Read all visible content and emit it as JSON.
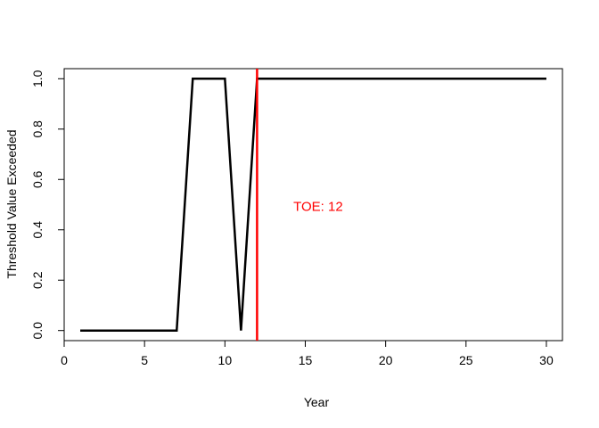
{
  "chart_data": {
    "type": "line",
    "xlabel": "Year",
    "ylabel": "Threshold Value Exceeded",
    "xlim": [
      0,
      31
    ],
    "ylim": [
      -0.04,
      1.04
    ],
    "x_ticks": [
      0,
      5,
      10,
      15,
      20,
      25,
      30
    ],
    "y_ticks": [
      0.0,
      0.2,
      0.4,
      0.6,
      0.8,
      1.0
    ],
    "x_tick_labels": [
      "0",
      "5",
      "10",
      "15",
      "20",
      "25",
      "30"
    ],
    "y_tick_labels": [
      "0.0",
      "0.2",
      "0.4",
      "0.6",
      "0.8",
      "1.0"
    ],
    "grid": false,
    "series": [
      {
        "x": [
          1,
          2,
          3,
          4,
          5,
          6,
          7,
          8,
          9,
          10,
          11,
          12,
          13,
          14,
          15,
          16,
          17,
          18,
          19,
          20,
          21,
          22,
          23,
          24,
          25,
          26,
          27,
          28,
          29,
          30
        ],
        "values": [
          0,
          0,
          0,
          0,
          0,
          0,
          0,
          1,
          1,
          1,
          0,
          1,
          1,
          1,
          1,
          1,
          1,
          1,
          1,
          1,
          1,
          1,
          1,
          1,
          1,
          1,
          1,
          1,
          1,
          1
        ],
        "color": "#000000"
      }
    ],
    "vline": {
      "x": 12,
      "color": "#ff0000"
    },
    "annotation": {
      "text": "TOE: 12",
      "x": 15.8,
      "y": 0.49,
      "color": "#ff0000"
    }
  }
}
